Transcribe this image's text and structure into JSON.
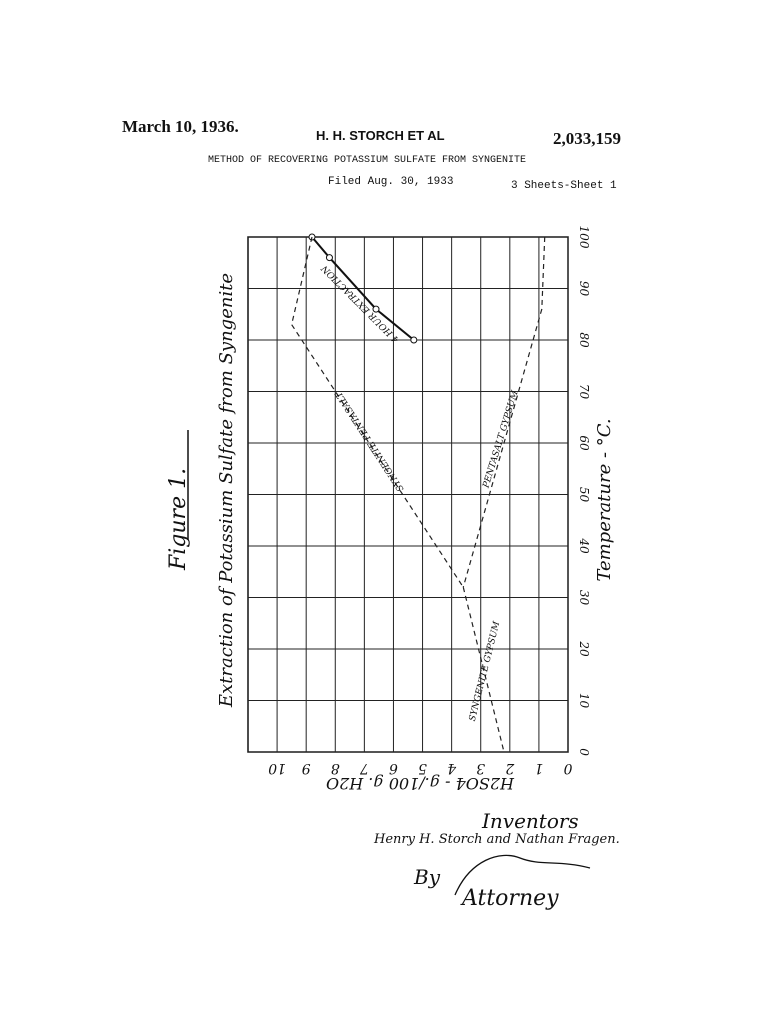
{
  "header": {
    "date": "March 10, 1936.",
    "inventors": "H. H. STORCH ET AL",
    "patent_number": "2,033,159",
    "title": "METHOD OF RECOVERING POTASSIUM SULFATE FROM SYNGENITE",
    "filed": "Filed Aug. 30, 1933",
    "sheets": "3 Sheets-Sheet 1"
  },
  "figure_label": "Figure 1.",
  "chart_data": {
    "type": "line",
    "title": "Extraction of Potassium Sulfate from Syngenite",
    "x_label": "H2SO4 - g./100 g. H2O",
    "y_label": "Temperature - °C.",
    "xlim": [
      11,
      0
    ],
    "xticks": [
      10,
      9,
      8,
      7,
      6,
      5,
      4,
      3,
      2,
      1,
      0
    ],
    "ylim": [
      0,
      100
    ],
    "yticks": [
      0,
      10,
      20,
      30,
      40,
      50,
      60,
      70,
      80,
      90,
      100
    ],
    "grid": true,
    "series": [
      {
        "name": "4 HOUR EXTRACTION",
        "color": "#111",
        "style": "solid",
        "markers": true,
        "x": [
          8.8,
          8.2,
          6.6,
          5.3
        ],
        "values": [
          100,
          96,
          86,
          80
        ]
      },
      {
        "name": "SYNGENITE PENTASALT",
        "color": "#222",
        "style": "dashed",
        "markers": false,
        "x": [
          8.8,
          9.5,
          3.6
        ],
        "values": [
          100,
          83,
          32
        ]
      },
      {
        "name": "PENTASALT GYPSUM",
        "color": "#222",
        "style": "dashed",
        "markers": false,
        "x": [
          0.8,
          0.9,
          3.6
        ],
        "values": [
          100,
          86,
          32
        ]
      },
      {
        "name": "SYNGENITE GYPSUM",
        "color": "#222",
        "style": "dashed",
        "markers": false,
        "x": [
          3.6,
          2.2
        ],
        "values": [
          32,
          0
        ]
      }
    ]
  },
  "footer": {
    "inventors_label": "Inventors",
    "inventor_names": "Henry H. Storch and Nathan Fragen.",
    "by": "By",
    "attorney": "Attorney"
  }
}
